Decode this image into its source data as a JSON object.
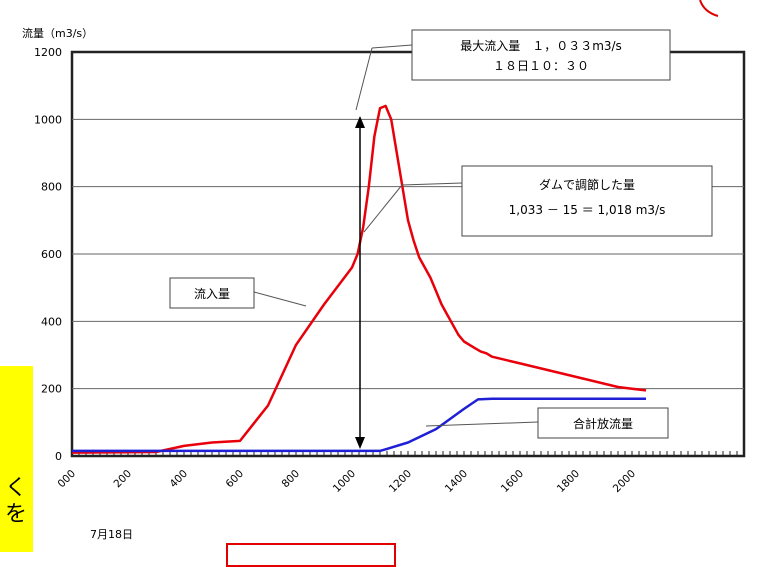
{
  "chart_data": {
    "type": "line",
    "ylabel": "流量（m3/s）",
    "ylim": [
      0,
      1200
    ],
    "yticks": [
      0,
      200,
      400,
      600,
      800,
      1000,
      1200
    ],
    "xticks": [
      "000",
      "200",
      "400",
      "600",
      "800",
      "1000",
      "1200",
      "1400",
      "1600",
      "1800",
      "2000"
    ],
    "xlim": [
      0,
      2400
    ],
    "date_label": "7月18日",
    "grid": true,
    "series": [
      {
        "name": "流入量",
        "color": "#e8000b",
        "x": [
          0,
          300,
          400,
          500,
          600,
          700,
          800,
          900,
          1000,
          1020,
          1040,
          1060,
          1080,
          1100,
          1120,
          1140,
          1160,
          1180,
          1200,
          1220,
          1240,
          1260,
          1280,
          1300,
          1320,
          1340,
          1360,
          1380,
          1400,
          1420,
          1440,
          1460,
          1480,
          1500,
          1600,
          1700,
          1800,
          1900,
          1950,
          2000,
          2050
        ],
        "y": [
          10,
          12,
          30,
          40,
          45,
          150,
          330,
          450,
          560,
          600,
          680,
          800,
          950,
          1033,
          1040,
          1000,
          900,
          800,
          700,
          640,
          590,
          560,
          530,
          490,
          450,
          420,
          390,
          360,
          340,
          330,
          320,
          310,
          305,
          295,
          275,
          255,
          235,
          215,
          205,
          200,
          195
        ]
      },
      {
        "name": "合計放流量",
        "color": "#1f1fd6",
        "x": [
          0,
          1100,
          1120,
          1200,
          1300,
          1400,
          1450,
          1500,
          1600,
          1800,
          2050
        ],
        "y": [
          15,
          15,
          20,
          40,
          80,
          140,
          168,
          170,
          170,
          170,
          170
        ]
      }
    ],
    "annotations": [
      {
        "id": "peak",
        "lines": [
          "最大流入量　１，０３３m3/s",
          "１８日１０：３０"
        ]
      },
      {
        "id": "regulated",
        "lines": [
          "ダムで調節した量",
          "1,033 － 15 ＝ 1,018 m3/s"
        ]
      },
      {
        "id": "inflow",
        "lines": [
          "流入量"
        ]
      },
      {
        "id": "outflow",
        "lines": [
          "合計放流量"
        ]
      }
    ]
  },
  "side_note": {
    "glyph1": "く",
    "glyph2": "を"
  }
}
